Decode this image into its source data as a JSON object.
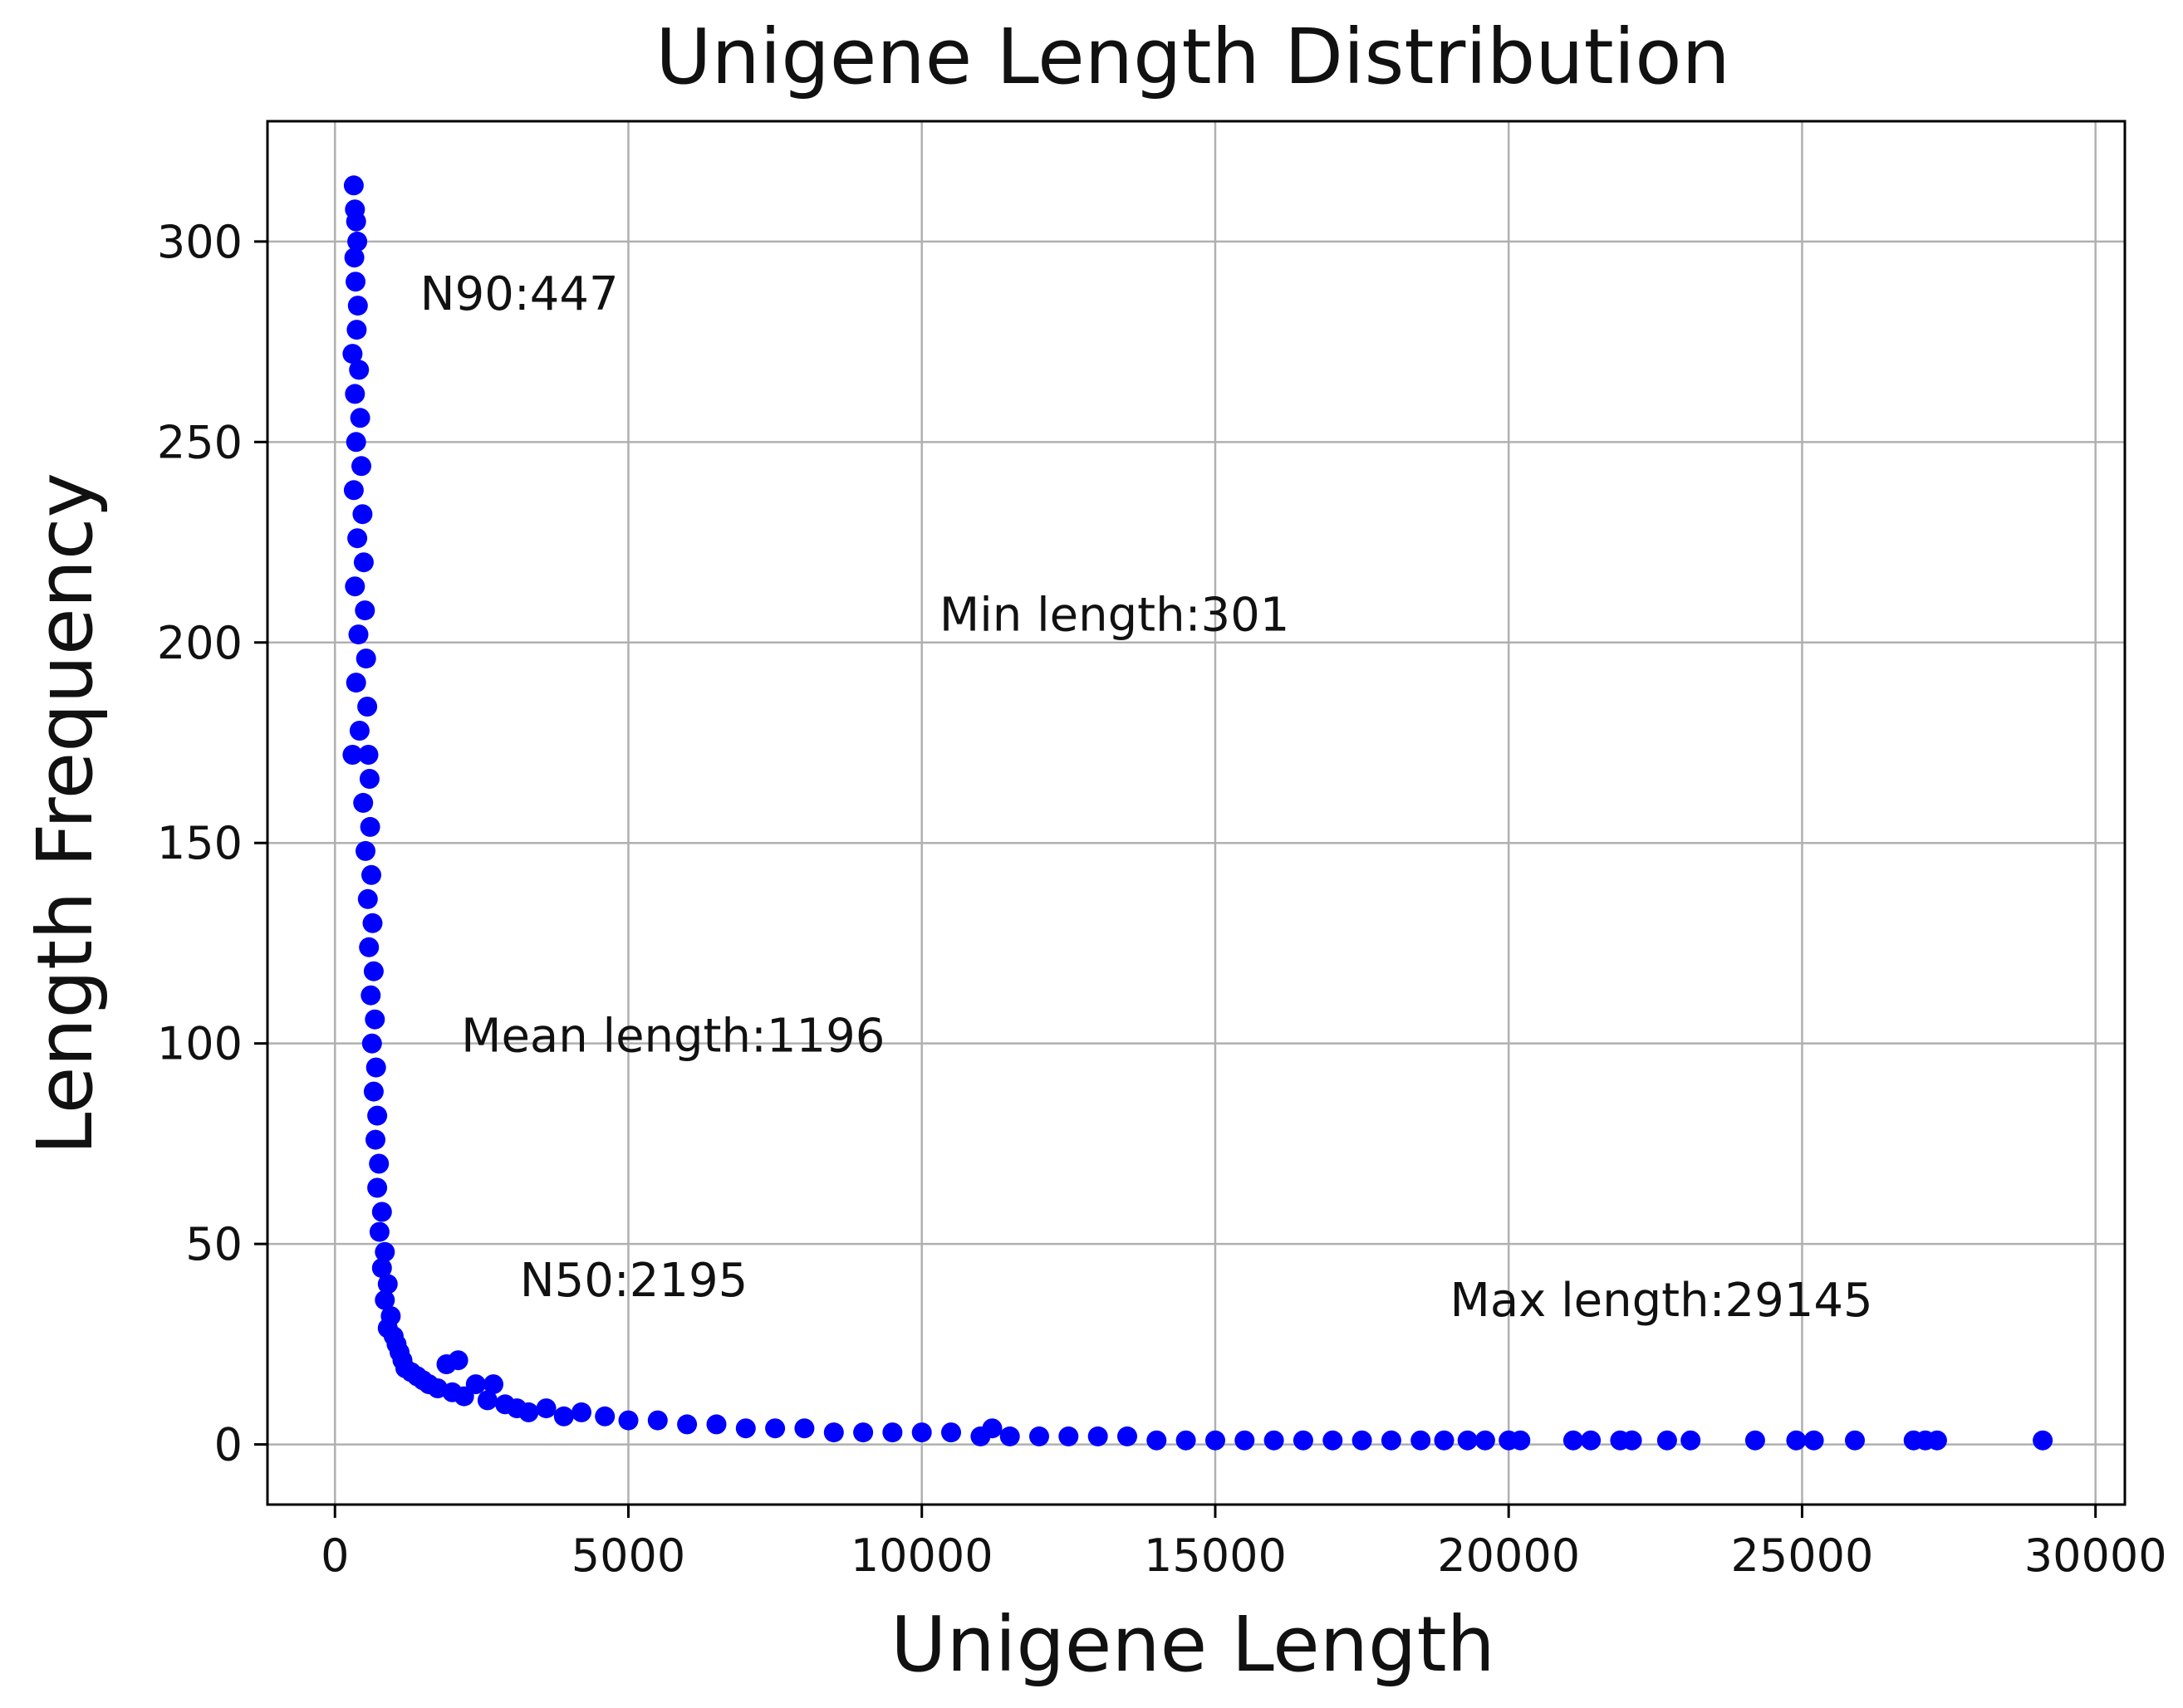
{
  "chart_data": {
    "type": "scatter",
    "title": "Unigene Length Distribution",
    "xlabel": "Unigene Length",
    "ylabel": "Length Frequency",
    "xlim": [
      -1150,
      30500
    ],
    "ylim": [
      -15,
      330
    ],
    "xticks": [
      0,
      5000,
      10000,
      15000,
      20000,
      25000,
      30000
    ],
    "yticks": [
      0,
      50,
      100,
      150,
      200,
      250,
      300
    ],
    "grid": true,
    "marker_color": "#0000ff",
    "annotations": [
      {
        "text": "N90:447",
        "x": 1450,
        "y": 283
      },
      {
        "text": "Min length:301",
        "x": 10300,
        "y": 203
      },
      {
        "text": "Mean length:1196",
        "x": 2150,
        "y": 98
      },
      {
        "text": "N50:2195",
        "x": 3150,
        "y": 37
      },
      {
        "text": "Max length:29145",
        "x": 19000,
        "y": 32
      }
    ],
    "points": [
      [
        320,
        314
      ],
      [
        340,
        308
      ],
      [
        360,
        305
      ],
      [
        380,
        300
      ],
      [
        330,
        296
      ],
      [
        350,
        290
      ],
      [
        390,
        284
      ],
      [
        370,
        278
      ],
      [
        300,
        272
      ],
      [
        410,
        268
      ],
      [
        340,
        262
      ],
      [
        430,
        256
      ],
      [
        360,
        250
      ],
      [
        450,
        244
      ],
      [
        320,
        238
      ],
      [
        470,
        232
      ],
      [
        380,
        226
      ],
      [
        490,
        220
      ],
      [
        340,
        214
      ],
      [
        510,
        208
      ],
      [
        400,
        202
      ],
      [
        530,
        196
      ],
      [
        360,
        190
      ],
      [
        550,
        184
      ],
      [
        420,
        178
      ],
      [
        570,
        172
      ],
      [
        300,
        172
      ],
      [
        590,
        166
      ],
      [
        480,
        160
      ],
      [
        600,
        154
      ],
      [
        520,
        148
      ],
      [
        620,
        142
      ],
      [
        560,
        136
      ],
      [
        640,
        130
      ],
      [
        580,
        124
      ],
      [
        660,
        118
      ],
      [
        610,
        112
      ],
      [
        680,
        106
      ],
      [
        630,
        100
      ],
      [
        700,
        94
      ],
      [
        660,
        88
      ],
      [
        720,
        82
      ],
      [
        690,
        76
      ],
      [
        750,
        70
      ],
      [
        720,
        64
      ],
      [
        800,
        58
      ],
      [
        760,
        53
      ],
      [
        850,
        48
      ],
      [
        800,
        44
      ],
      [
        900,
        40
      ],
      [
        850,
        36
      ],
      [
        950,
        32
      ],
      [
        900,
        29
      ],
      [
        1000,
        27
      ],
      [
        1050,
        25
      ],
      [
        1100,
        23
      ],
      [
        1150,
        21
      ],
      [
        1200,
        19
      ],
      [
        1300,
        18
      ],
      [
        1400,
        17
      ],
      [
        1500,
        16
      ],
      [
        1600,
        15
      ],
      [
        1750,
        14
      ],
      [
        1900,
        20
      ],
      [
        2000,
        13
      ],
      [
        2100,
        21
      ],
      [
        2200,
        12
      ],
      [
        2400,
        15
      ],
      [
        2600,
        11
      ],
      [
        2700,
        15
      ],
      [
        2900,
        10
      ],
      [
        3100,
        9
      ],
      [
        3300,
        8
      ],
      [
        3600,
        9
      ],
      [
        3900,
        7
      ],
      [
        4200,
        8
      ],
      [
        4600,
        7
      ],
      [
        5000,
        6
      ],
      [
        5500,
        6
      ],
      [
        6000,
        5
      ],
      [
        6500,
        5
      ],
      [
        7000,
        4
      ],
      [
        7500,
        4
      ],
      [
        8000,
        4
      ],
      [
        8500,
        3
      ],
      [
        9000,
        3
      ],
      [
        9500,
        3
      ],
      [
        10000,
        3
      ],
      [
        10500,
        3
      ],
      [
        11000,
        2
      ],
      [
        11200,
        4
      ],
      [
        11500,
        2
      ],
      [
        12000,
        2
      ],
      [
        12500,
        2
      ],
      [
        13000,
        2
      ],
      [
        13500,
        2
      ],
      [
        14000,
        1
      ],
      [
        14500,
        1
      ],
      [
        15000,
        1
      ],
      [
        15500,
        1
      ],
      [
        16000,
        1
      ],
      [
        16500,
        1
      ],
      [
        17000,
        1
      ],
      [
        17500,
        1
      ],
      [
        18000,
        1
      ],
      [
        18500,
        1
      ],
      [
        18900,
        1
      ],
      [
        19300,
        1
      ],
      [
        19600,
        1
      ],
      [
        20000,
        1
      ],
      [
        20200,
        1
      ],
      [
        21100,
        1
      ],
      [
        21400,
        1
      ],
      [
        21900,
        1
      ],
      [
        22100,
        1
      ],
      [
        22700,
        1
      ],
      [
        23100,
        1
      ],
      [
        24200,
        1
      ],
      [
        24900,
        1
      ],
      [
        25200,
        1
      ],
      [
        25900,
        1
      ],
      [
        26900,
        1
      ],
      [
        27100,
        1
      ],
      [
        27300,
        1
      ],
      [
        29100,
        1
      ]
    ]
  }
}
